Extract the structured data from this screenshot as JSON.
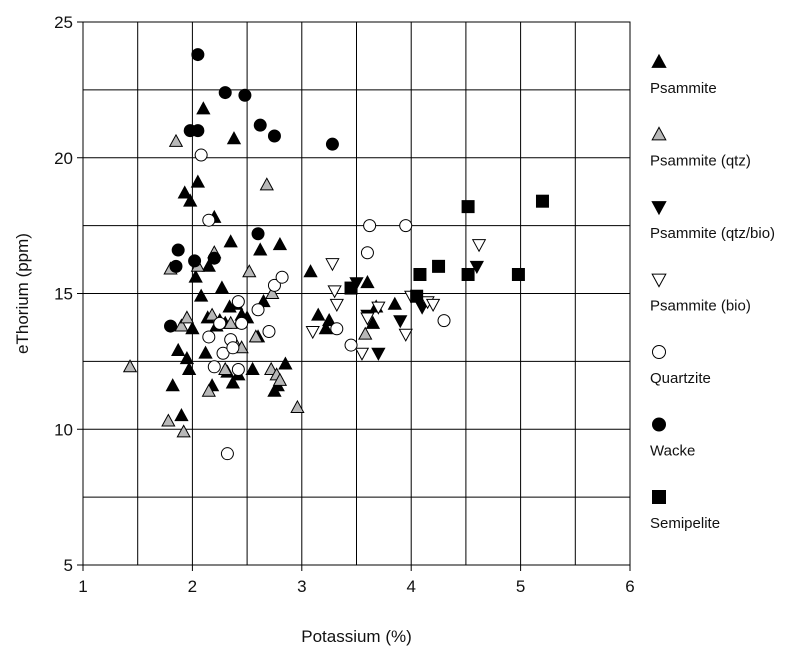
{
  "chart_data": {
    "type": "scatter",
    "xlabel": "Potassium (%)",
    "ylabel": "eThorium (ppm)",
    "xlim": [
      1,
      6
    ],
    "ylim": [
      5,
      25
    ],
    "xticks": [
      1,
      2,
      3,
      4,
      5,
      6
    ],
    "yticks": [
      5,
      10,
      15,
      20,
      25
    ],
    "grid": true,
    "legend_position": "right",
    "series": [
      {
        "name": "Psammite",
        "marker": "triangle-up",
        "fill": "#000000",
        "points": [
          [
            1.82,
            11.6
          ],
          [
            1.87,
            12.9
          ],
          [
            1.9,
            10.5
          ],
          [
            1.93,
            18.7
          ],
          [
            1.95,
            12.6
          ],
          [
            1.97,
            12.2
          ],
          [
            1.98,
            18.4
          ],
          [
            2.0,
            13.7
          ],
          [
            2.03,
            15.6
          ],
          [
            2.05,
            19.1
          ],
          [
            2.08,
            14.9
          ],
          [
            2.1,
            21.8
          ],
          [
            2.12,
            12.8
          ],
          [
            2.14,
            14.1
          ],
          [
            2.15,
            16.0
          ],
          [
            2.18,
            11.6
          ],
          [
            2.2,
            17.8
          ],
          [
            2.22,
            13.8
          ],
          [
            2.25,
            14.0
          ],
          [
            2.27,
            15.2
          ],
          [
            2.3,
            13.9
          ],
          [
            2.32,
            12.1
          ],
          [
            2.34,
            14.5
          ],
          [
            2.35,
            16.9
          ],
          [
            2.37,
            11.7
          ],
          [
            2.38,
            20.7
          ],
          [
            2.4,
            14.6
          ],
          [
            2.42,
            12.0
          ],
          [
            2.45,
            14.2
          ],
          [
            2.5,
            14.1
          ],
          [
            2.55,
            12.2
          ],
          [
            2.6,
            13.4
          ],
          [
            2.62,
            16.6
          ],
          [
            2.65,
            14.7
          ],
          [
            2.75,
            11.4
          ],
          [
            2.78,
            11.6
          ],
          [
            2.8,
            16.8
          ],
          [
            2.85,
            12.4
          ],
          [
            3.08,
            15.8
          ],
          [
            3.15,
            14.2
          ],
          [
            3.22,
            13.7
          ],
          [
            3.25,
            14.0
          ],
          [
            3.6,
            15.4
          ],
          [
            3.65,
            13.9
          ],
          [
            3.68,
            14.5
          ],
          [
            3.85,
            14.6
          ]
        ]
      },
      {
        "name": "Psammite (qtz)",
        "marker": "triangle-up",
        "fill": "#b8b8b8",
        "points": [
          [
            1.43,
            12.3
          ],
          [
            1.78,
            10.3
          ],
          [
            1.8,
            15.9
          ],
          [
            1.85,
            20.6
          ],
          [
            1.9,
            13.8
          ],
          [
            1.92,
            9.9
          ],
          [
            1.95,
            14.1
          ],
          [
            2.05,
            16.0
          ],
          [
            2.15,
            11.4
          ],
          [
            2.18,
            14.2
          ],
          [
            2.2,
            16.5
          ],
          [
            2.3,
            12.2
          ],
          [
            2.35,
            13.9
          ],
          [
            2.4,
            13.1
          ],
          [
            2.45,
            13.0
          ],
          [
            2.52,
            15.8
          ],
          [
            2.58,
            13.4
          ],
          [
            2.68,
            19.0
          ],
          [
            2.72,
            12.2
          ],
          [
            2.73,
            15.0
          ],
          [
            2.77,
            12.0
          ],
          [
            2.8,
            11.8
          ],
          [
            2.96,
            10.8
          ],
          [
            3.58,
            13.5
          ]
        ]
      },
      {
        "name": "Psammite (qtz/bio)",
        "marker": "triangle-down",
        "fill": "#000000",
        "points": [
          [
            3.5,
            15.4
          ],
          [
            3.6,
            14.2
          ],
          [
            3.7,
            12.8
          ],
          [
            3.9,
            14.0
          ],
          [
            4.1,
            14.5
          ],
          [
            4.6,
            16.0
          ]
        ]
      },
      {
        "name": "Psammite (bio)",
        "marker": "triangle-down",
        "fill": "#ffffff",
        "points": [
          [
            3.1,
            13.6
          ],
          [
            3.28,
            16.1
          ],
          [
            3.3,
            15.1
          ],
          [
            3.32,
            14.6
          ],
          [
            3.55,
            12.8
          ],
          [
            3.6,
            14.1
          ],
          [
            3.7,
            14.5
          ],
          [
            3.95,
            13.5
          ],
          [
            4.0,
            14.9
          ],
          [
            4.15,
            14.7
          ],
          [
            4.2,
            14.6
          ],
          [
            4.62,
            16.8
          ]
        ]
      },
      {
        "name": "Quartzite",
        "marker": "circle",
        "fill": "#ffffff",
        "points": [
          [
            2.08,
            20.1
          ],
          [
            2.15,
            17.7
          ],
          [
            2.15,
            13.4
          ],
          [
            2.2,
            12.3
          ],
          [
            2.25,
            13.9
          ],
          [
            2.28,
            12.8
          ],
          [
            2.32,
            9.1
          ],
          [
            2.35,
            13.3
          ],
          [
            2.37,
            13.0
          ],
          [
            2.42,
            14.7
          ],
          [
            2.42,
            12.2
          ],
          [
            2.45,
            13.9
          ],
          [
            2.6,
            14.4
          ],
          [
            2.7,
            13.6
          ],
          [
            2.75,
            15.3
          ],
          [
            2.82,
            15.6
          ],
          [
            3.32,
            13.7
          ],
          [
            3.45,
            13.1
          ],
          [
            3.6,
            16.5
          ],
          [
            3.62,
            17.5
          ],
          [
            3.95,
            17.5
          ],
          [
            4.3,
            14.0
          ]
        ]
      },
      {
        "name": "Wacke",
        "marker": "circle",
        "fill": "#000000",
        "points": [
          [
            1.8,
            13.8
          ],
          [
            1.85,
            16.0
          ],
          [
            1.87,
            16.6
          ],
          [
            1.98,
            21.0
          ],
          [
            2.02,
            16.2
          ],
          [
            2.05,
            21.0
          ],
          [
            2.05,
            23.8
          ],
          [
            2.3,
            22.4
          ],
          [
            2.2,
            16.3
          ],
          [
            2.48,
            22.3
          ],
          [
            2.6,
            17.2
          ],
          [
            2.62,
            21.2
          ],
          [
            2.75,
            20.8
          ],
          [
            3.28,
            20.5
          ]
        ]
      },
      {
        "name": "Semipelite",
        "marker": "square",
        "fill": "#000000",
        "points": [
          [
            3.45,
            15.2
          ],
          [
            4.05,
            14.9
          ],
          [
            4.08,
            15.7
          ],
          [
            4.25,
            16.0
          ],
          [
            4.52,
            18.2
          ],
          [
            4.52,
            15.7
          ],
          [
            4.98,
            15.7
          ],
          [
            5.2,
            18.4
          ]
        ]
      }
    ]
  }
}
